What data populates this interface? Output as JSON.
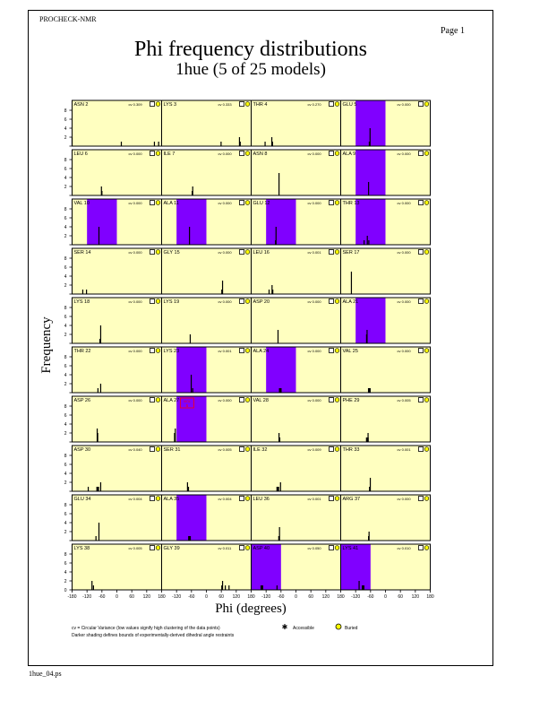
{
  "header": {
    "program": "PROCHECK-NMR",
    "page": "Page  1",
    "title": "Phi frequency distributions",
    "subtitle": "1hue (5 of 25 models)"
  },
  "footer": {
    "filename": "1hue_04.ps"
  },
  "legend": {
    "cv_note": "cv = Circular Variance (low values signify high clustering of the data points)",
    "shading_note": "Darker shading defines bounds of experimentally-derived dihedral angle restraints",
    "accessible": "Accessible",
    "buried": "Buried"
  },
  "colors": {
    "panel_bg": "#ffffc0",
    "restraint": "#8000ff",
    "bar": "#000000",
    "flag": "#ff0000"
  },
  "chart_data": {
    "type": "bar",
    "title": "Phi frequency distributions",
    "xlabel": "Phi (degrees)",
    "ylabel": "Frequency",
    "xlim": [
      -180,
      180
    ],
    "ylim": [
      0,
      10
    ],
    "xticks": [
      "-180",
      "-120",
      "-60",
      "0",
      "60",
      "120",
      "180"
    ],
    "yticks": [
      "0",
      "2",
      "4",
      "6",
      "8"
    ],
    "panels": [
      {
        "label": "ASN 2",
        "cv": "cv 0.309",
        "shade": null,
        "bars": [
          [
            -180,
            2
          ],
          [
            18,
            1
          ],
          [
            151,
            1
          ],
          [
            168,
            1
          ]
        ]
      },
      {
        "label": "LYS 3",
        "cv": "cv 0.333",
        "shade": null,
        "bars": [
          [
            59,
            1
          ],
          [
            133,
            2
          ],
          [
            136,
            1
          ]
        ]
      },
      {
        "label": "THR 4",
        "cv": "cv 0.270",
        "shade": null,
        "bars": [
          [
            -124,
            1
          ],
          [
            -97,
            2
          ],
          [
            -94,
            1
          ]
        ]
      },
      {
        "label": "GLU 5",
        "cv": "cv 0.000",
        "shade": [
          -120,
          0
        ],
        "bars": [
          [
            -62,
            4
          ],
          [
            -65,
            1
          ]
        ]
      },
      {
        "label": "LEU 6",
        "cv": "cv 0.000",
        "shade": null,
        "bars": [
          [
            -62,
            2
          ],
          [
            -60,
            1
          ]
        ]
      },
      {
        "label": "ILE 7",
        "cv": "cv 0.000",
        "shade": null,
        "bars": [
          [
            -55,
            2
          ],
          [
            -57,
            1
          ]
        ]
      },
      {
        "label": "ASN 8",
        "cv": "cv 0.000",
        "shade": null,
        "bars": [
          [
            -68,
            5
          ]
        ]
      },
      {
        "label": "ALA 9",
        "cv": "cv 0.000",
        "shade": [
          -120,
          0
        ],
        "bars": [
          [
            -68,
            3
          ]
        ]
      },
      {
        "label": "VAL 10",
        "cv": "cv 0.000",
        "shade": [
          -120,
          0
        ],
        "bars": [
          [
            -72,
            4
          ]
        ]
      },
      {
        "label": "ALA 11",
        "cv": "cv 0.000",
        "shade": [
          -120,
          0
        ],
        "bars": [
          [
            -68,
            4
          ]
        ]
      },
      {
        "label": "GLU 12",
        "cv": "cv 0.000",
        "shade": [
          -120,
          0
        ],
        "bars": [
          [
            -80,
            4
          ],
          [
            -82,
            1
          ]
        ]
      },
      {
        "label": "THR 13",
        "cv": "cv 0.000",
        "shade": [
          -120,
          0
        ],
        "bars": [
          [
            -73,
            2
          ],
          [
            -86,
            1
          ],
          [
            -67,
            1
          ]
        ]
      },
      {
        "label": "SER 14",
        "cv": "cv 0.000",
        "shade": null,
        "bars": [
          [
            -137,
            1
          ],
          [
            -122,
            1
          ]
        ]
      },
      {
        "label": "GLY 15",
        "cv": "cv 0.000",
        "shade": null,
        "bars": [
          [
            65,
            3
          ],
          [
            62,
            1
          ]
        ]
      },
      {
        "label": "LEU 16",
        "cv": "cv 0.001",
        "shade": null,
        "bars": [
          [
            -108,
            1
          ],
          [
            -96,
            2
          ],
          [
            -93,
            1
          ]
        ]
      },
      {
        "label": "SER 17",
        "cv": "cv 0.000",
        "shade": null,
        "bars": [
          [
            -137,
            5
          ]
        ]
      },
      {
        "label": "LYS 18",
        "cv": "cv 0.000",
        "shade": null,
        "bars": [
          [
            -65,
            4
          ],
          [
            -68,
            1
          ]
        ]
      },
      {
        "label": "LYS 19",
        "cv": "cv 0.000",
        "shade": null,
        "bars": [
          [
            -65,
            2
          ]
        ]
      },
      {
        "label": "ASP 20",
        "cv": "cv 0.000",
        "shade": null,
        "bars": [
          [
            -72,
            3
          ]
        ]
      },
      {
        "label": "ALA 21",
        "cv": "cv 0.000",
        "shade": [
          -120,
          0
        ],
        "bars": [
          [
            -74,
            3
          ],
          [
            -76,
            2
          ]
        ]
      },
      {
        "label": "THR 22",
        "cv": "cv 0.000",
        "shade": null,
        "bars": [
          [
            -76,
            1
          ],
          [
            -65,
            2
          ]
        ]
      },
      {
        "label": "LYS 23",
        "cv": "cv 0.001",
        "shade": [
          -120,
          0
        ],
        "bars": [
          [
            -61,
            4
          ],
          [
            -55,
            1
          ]
        ]
      },
      {
        "label": "ALA 24",
        "cv": "cv 0.000",
        "shade": [
          -120,
          0
        ],
        "bars": [
          [
            -63,
            1,
            "wide"
          ]
        ]
      },
      {
        "label": "VAL 25",
        "cv": "cv 0.000",
        "shade": null,
        "bars": [
          [
            -65,
            1,
            "wide"
          ]
        ]
      },
      {
        "label": "ASP 26",
        "cv": "cv 0.000",
        "shade": null,
        "bars": [
          [
            -79,
            3
          ],
          [
            -77,
            2
          ]
        ]
      },
      {
        "label": "ALA 27",
        "cv": "cv 0.000",
        "shade": [
          -120,
          0
        ],
        "bars": [
          [
            -125,
            3
          ],
          [
            -128,
            2
          ]
        ],
        "flag": [
          "VIOL",
          "5"
        ]
      },
      {
        "label": "VAL 28",
        "cv": "cv 0.000",
        "shade": null,
        "bars": [
          [
            -68,
            2
          ],
          [
            -65,
            1
          ]
        ]
      },
      {
        "label": "PHE 29",
        "cv": "cv 0.005",
        "shade": null,
        "bars": [
          [
            -70,
            2
          ],
          [
            -73,
            1,
            "wide"
          ]
        ]
      },
      {
        "label": "ASP 30",
        "cv": "cv 0.040",
        "shade": null,
        "bars": [
          [
            -115,
            1
          ],
          [
            -77,
            1,
            "wide"
          ],
          [
            -65,
            2
          ]
        ]
      },
      {
        "label": "SER 31",
        "cv": "cv 0.005",
        "shade": null,
        "bars": [
          [
            -76,
            2
          ],
          [
            -72,
            1
          ]
        ]
      },
      {
        "label": "ILE 32",
        "cv": "cv 0.009",
        "shade": null,
        "bars": [
          [
            -73,
            1,
            "wide"
          ],
          [
            -62,
            2
          ]
        ]
      },
      {
        "label": "THR 33",
        "cv": "cv 0.001",
        "shade": null,
        "bars": [
          [
            -61,
            3
          ],
          [
            -64,
            1
          ]
        ]
      },
      {
        "label": "GLU 34",
        "cv": "cv 0.004",
        "shade": null,
        "bars": [
          [
            -84,
            1
          ],
          [
            -72,
            4
          ]
        ]
      },
      {
        "label": "ALA 35",
        "cv": "cv 0.004",
        "shade": [
          -120,
          0
        ],
        "bars": [
          [
            -68,
            1,
            "wide"
          ]
        ]
      },
      {
        "label": "LEU 36",
        "cv": "cv 0.001",
        "shade": null,
        "bars": [
          [
            -66,
            3
          ],
          [
            -69,
            1
          ]
        ]
      },
      {
        "label": "ARG 37",
        "cv": "cv 0.000",
        "shade": null,
        "bars": [
          [
            -66,
            2
          ],
          [
            -68,
            1
          ]
        ]
      },
      {
        "label": "LYS 38",
        "cv": "cv 0.005",
        "shade": null,
        "bars": [
          [
            -100,
            2
          ],
          [
            -94,
            1
          ]
        ]
      },
      {
        "label": "GLY 39",
        "cv": "cv 0.011",
        "shade": null,
        "bars": [
          [
            65,
            2
          ],
          [
            62,
            1
          ],
          [
            76,
            1
          ],
          [
            91,
            1
          ]
        ]
      },
      {
        "label": "ASP 40",
        "cv": "cv 0.050",
        "shade": [
          -180,
          -60
        ],
        "bars": [
          [
            -137,
            1,
            "wide"
          ],
          [
            -76,
            1
          ]
        ]
      },
      {
        "label": "LYS 41",
        "cv": "cv 0.010",
        "shade": [
          -180,
          -60
        ],
        "bars": [
          [
            -106,
            2
          ],
          [
            -90,
            1,
            "wide"
          ]
        ]
      }
    ]
  }
}
